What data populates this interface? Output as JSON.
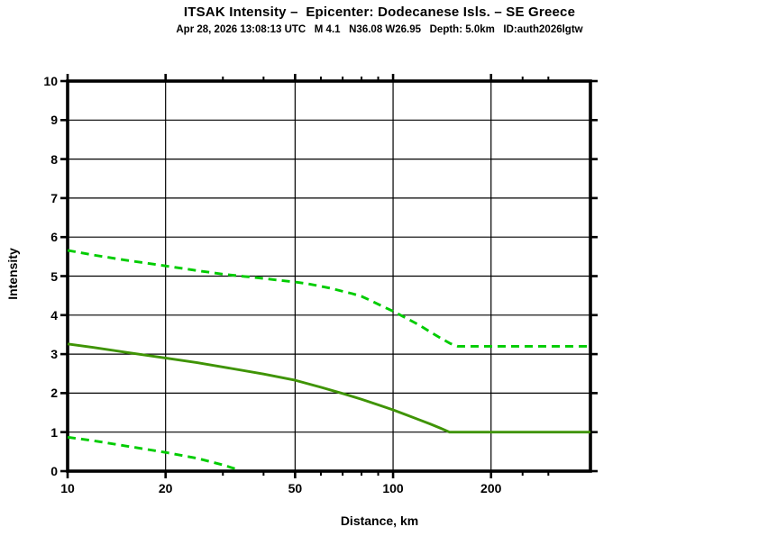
{
  "header": {
    "title": "ITSAK Intensity –  Epicenter: Dodecanese Isls. – SE Greece",
    "subtitle": "Apr 28, 2026 13:08:13 UTC   M 4.1   N36.08 W26.95   Depth: 5.0km   ID:auth2026lgtw"
  },
  "chart_data": {
    "type": "line",
    "title": "ITSAK Intensity –  Epicenter: Dodecanese Isls. – SE Greece",
    "subtitle": "Apr 28, 2026 13:08:13 UTC   M 4.1   N36.08 W26.95   Depth: 5.0km   ID:auth2026lgtw",
    "xlabel": "Distance, km",
    "ylabel": "Intensity",
    "x_scale": "log",
    "xlim": [
      10,
      404
    ],
    "ylim": [
      0,
      10
    ],
    "grid": true,
    "x_major_ticks": [
      10,
      20,
      50,
      100,
      200
    ],
    "x_minor_ticks": [
      30,
      40,
      60,
      70,
      80,
      90,
      250,
      300
    ],
    "y_ticks": [
      0,
      1,
      2,
      3,
      4,
      5,
      6,
      7,
      8,
      9,
      10
    ],
    "x_gridlines": [
      20,
      50,
      100,
      200
    ],
    "y_gridlines": [
      1,
      2,
      3,
      4,
      5,
      6,
      7,
      8,
      9
    ],
    "colors": {
      "mean_line": "#3f9405",
      "bound_line": "#00cc00",
      "frame": "#000000",
      "grid": "#000000"
    },
    "series": [
      {
        "name": "upper-bound-intensity",
        "style": "dashed",
        "color": "#00cc00",
        "points": [
          [
            10,
            5.66
          ],
          [
            12,
            5.54
          ],
          [
            15,
            5.41
          ],
          [
            20,
            5.26
          ],
          [
            25,
            5.14
          ],
          [
            30,
            5.05
          ],
          [
            35,
            4.99
          ],
          [
            40,
            4.94
          ],
          [
            45,
            4.89
          ],
          [
            50,
            4.85
          ],
          [
            55,
            4.8
          ],
          [
            60,
            4.74
          ],
          [
            65,
            4.68
          ],
          [
            70,
            4.61
          ],
          [
            75,
            4.55
          ],
          [
            80,
            4.48
          ],
          [
            85,
            4.38
          ],
          [
            90,
            4.28
          ],
          [
            100,
            4.1
          ],
          [
            110,
            3.92
          ],
          [
            120,
            3.75
          ],
          [
            130,
            3.57
          ],
          [
            140,
            3.41
          ],
          [
            150,
            3.27
          ],
          [
            158,
            3.2
          ],
          [
            200,
            3.2
          ],
          [
            300,
            3.2
          ],
          [
            404,
            3.2
          ]
        ]
      },
      {
        "name": "mean-intensity",
        "style": "solid",
        "color": "#3f9405",
        "points": [
          [
            10,
            3.26
          ],
          [
            12,
            3.17
          ],
          [
            15,
            3.05
          ],
          [
            20,
            2.9
          ],
          [
            25,
            2.78
          ],
          [
            30,
            2.67
          ],
          [
            40,
            2.49
          ],
          [
            50,
            2.33
          ],
          [
            60,
            2.15
          ],
          [
            70,
            1.99
          ],
          [
            80,
            1.84
          ],
          [
            90,
            1.7
          ],
          [
            100,
            1.57
          ],
          [
            110,
            1.44
          ],
          [
            120,
            1.32
          ],
          [
            130,
            1.21
          ],
          [
            140,
            1.1
          ],
          [
            149,
            1.0
          ],
          [
            200,
            1.0
          ],
          [
            300,
            1.0
          ],
          [
            404,
            1.0
          ]
        ]
      },
      {
        "name": "lower-bound-intensity",
        "style": "dashed",
        "color": "#00cc00",
        "points": [
          [
            10,
            0.87
          ],
          [
            12,
            0.78
          ],
          [
            15,
            0.65
          ],
          [
            20,
            0.48
          ],
          [
            25,
            0.33
          ],
          [
            30,
            0.16
          ],
          [
            33,
            0.05
          ]
        ]
      }
    ]
  }
}
